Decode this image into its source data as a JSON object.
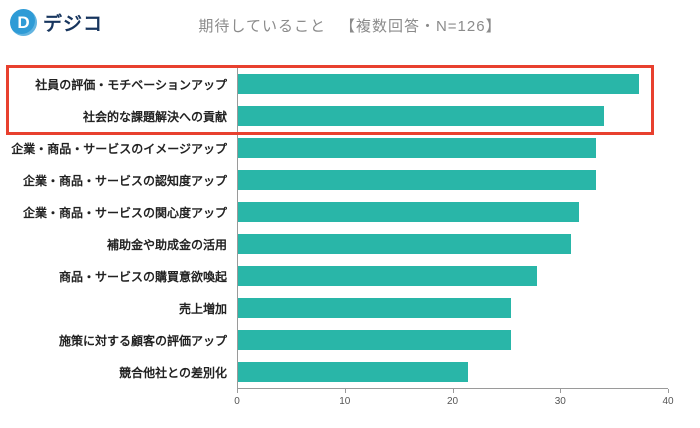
{
  "logo": {
    "icon": "digico-d-icon",
    "icon_glyph": "D",
    "text": "デジコ"
  },
  "header": {
    "title": "期待していること",
    "subtitle": "【複数回答・N=126】"
  },
  "colors": {
    "bar": "#29b6a8",
    "highlight_border": "#e8402e",
    "title_text": "#8b8b8b",
    "label_text": "#222222",
    "axis_text": "#555555",
    "logo_blue": "#2e9bd6",
    "logo_navy": "#17355e"
  },
  "chart_data": {
    "type": "bar",
    "orientation": "horizontal",
    "title": "期待していること",
    "subtitle": "【複数回答・N=126】",
    "categories": [
      "社員の評価・モチベーションアップ",
      "社会的な課題解決への貢献",
      "企業・商品・サービスのイメージアップ",
      "企業・商品・サービスの認知度アップ",
      "企業・商品・サービスの関心度アップ",
      "補助金や助成金の活用",
      "商品・サービスの購買意欲喚起",
      "売上増加",
      "施策に対する顧客の評価アップ",
      "競合他社との差別化"
    ],
    "values": [
      37.3,
      34.1,
      33.3,
      33.3,
      31.7,
      31.0,
      27.8,
      25.4,
      25.4,
      21.4
    ],
    "xlabel": "",
    "ylabel": "",
    "xlim": [
      0,
      40
    ],
    "x_ticks": [
      0,
      10,
      20,
      30,
      40
    ],
    "grid": false,
    "legend": false,
    "highlighted_categories": [
      "社員の評価・モチベーションアップ",
      "社会的な課題解決への貢献"
    ]
  }
}
